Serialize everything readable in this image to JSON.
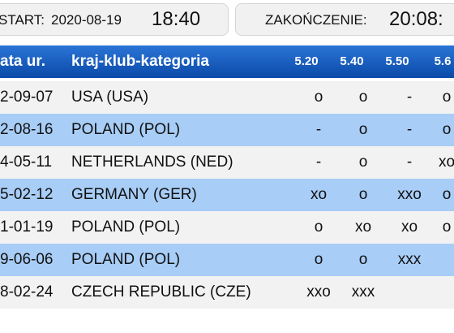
{
  "header": {
    "start_label": "START:",
    "start_date": "2020-08-19",
    "start_time": "18:40",
    "end_label": "ZAKOŃCZENIE:",
    "end_time": "20:08:"
  },
  "table": {
    "columns": [
      "ata ur.",
      "kraj-klub-kategoria",
      "5.20",
      "5.40",
      "5.50",
      "5.6"
    ],
    "rows": [
      [
        "2-09-07",
        "USA (USA)",
        "o",
        "o",
        "-",
        "o"
      ],
      [
        "2-08-16",
        "POLAND (POL)",
        "-",
        "o",
        "-",
        "o"
      ],
      [
        "4-05-11",
        "NETHERLANDS (NED)",
        "-",
        "o",
        "-",
        "xo"
      ],
      [
        "5-02-12",
        "GERMANY (GER)",
        "xo",
        "o",
        "xxo",
        "o"
      ],
      [
        "1-01-19",
        "POLAND (POL)",
        "o",
        "xo",
        "xo",
        "o"
      ],
      [
        "9-06-06",
        "POLAND (POL)",
        "o",
        "o",
        "xxx",
        ""
      ],
      [
        "8-02-24",
        "CZECH REPUBLIC (CZE)",
        "xxo",
        "xxx",
        "",
        ""
      ]
    ]
  }
}
